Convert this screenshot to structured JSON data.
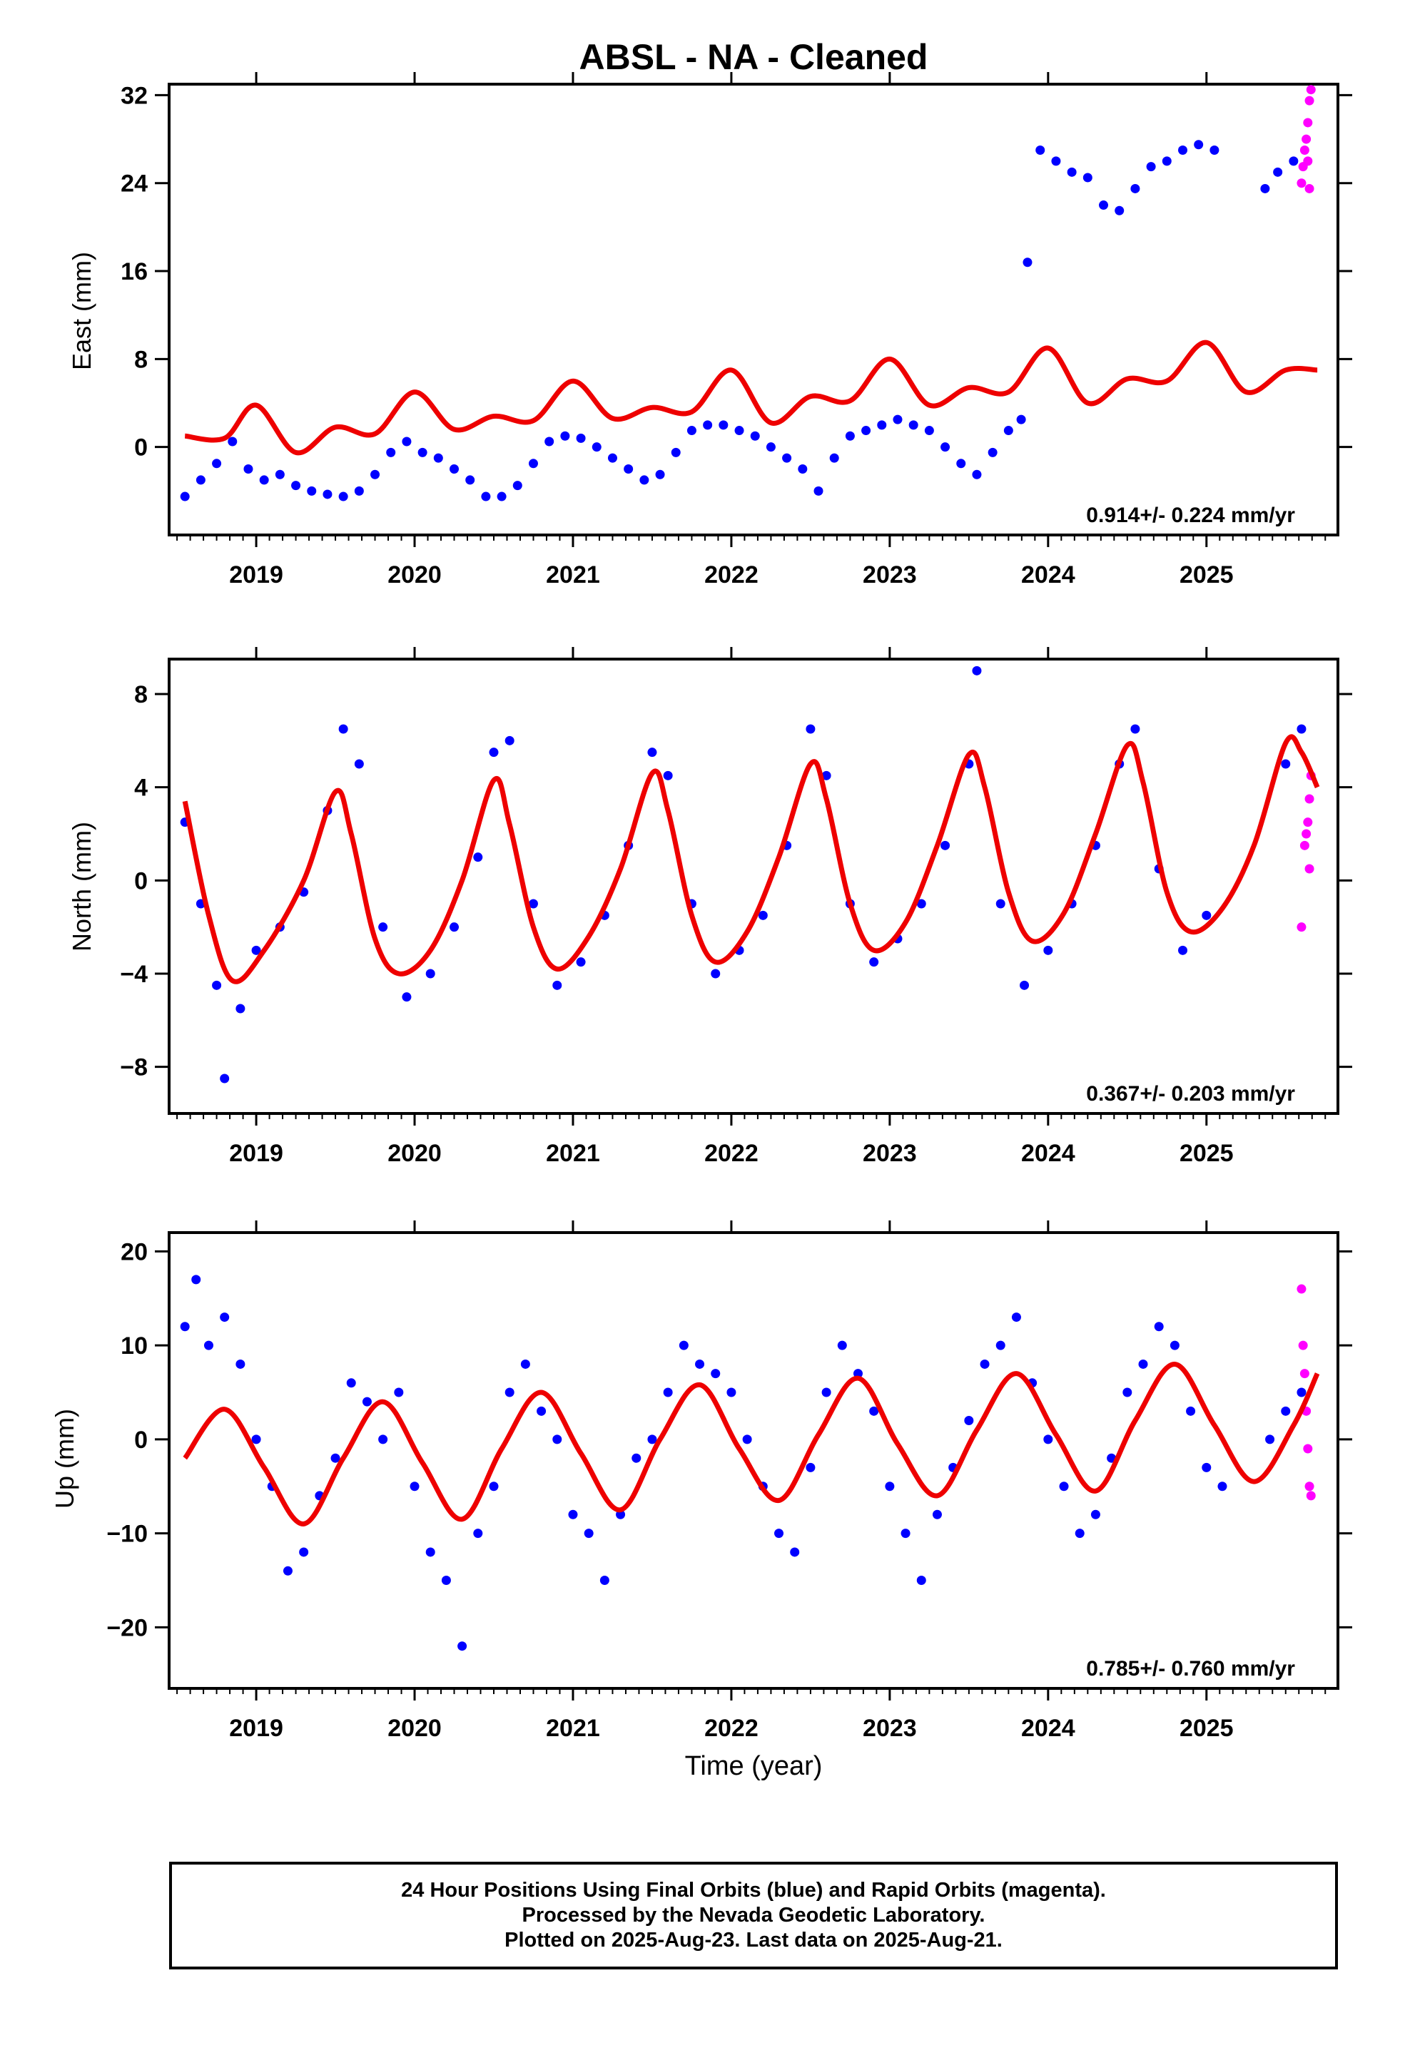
{
  "title": "ABSL  - NA - Cleaned",
  "colors": {
    "final": "#0000ff",
    "rapid": "#ff00ff",
    "model": "#ee0000"
  },
  "footer": {
    "line1": "24 Hour Positions Using Final Orbits (blue) and Rapid Orbits (magenta).",
    "line2": "Processed by the Nevada Geodetic Laboratory.",
    "line3": "Plotted on 2025-Aug-23. Last data on 2025-Aug-21."
  },
  "chart_data": [
    {
      "type": "scatter",
      "ylabel": "East (mm)",
      "xlabel": "",
      "xlim": [
        2018.45,
        2025.83
      ],
      "ylim": [
        -8,
        33
      ],
      "xticks": [
        2019,
        2020,
        2021,
        2022,
        2023,
        2024,
        2025
      ],
      "yticks": [
        0,
        8,
        16,
        24,
        32
      ],
      "rate_text": "0.914+/- 0.224 mm/yr",
      "series": [
        {
          "role": "final",
          "x": [
            2018.55,
            2018.65,
            2018.75,
            2018.85,
            2018.95,
            2019.05,
            2019.15,
            2019.25,
            2019.35,
            2019.45,
            2019.55,
            2019.65,
            2019.75,
            2019.85,
            2019.95,
            2020.05,
            2020.15,
            2020.25,
            2020.35,
            2020.45,
            2020.55,
            2020.65,
            2020.75,
            2020.85,
            2020.95,
            2021.05,
            2021.15,
            2021.25,
            2021.35,
            2021.45,
            2021.55,
            2021.65,
            2021.75,
            2021.85,
            2021.95,
            2022.05,
            2022.15,
            2022.25,
            2022.35,
            2022.45,
            2022.55,
            2022.65,
            2022.75,
            2022.85,
            2022.95,
            2023.05,
            2023.15,
            2023.25,
            2023.35,
            2023.45,
            2023.55,
            2023.65,
            2023.75,
            2023.83,
            2023.87,
            2023.95,
            2024.05,
            2024.15,
            2024.25,
            2024.35,
            2024.45,
            2024.55,
            2024.65,
            2024.75,
            2024.85,
            2024.95,
            2025.05,
            2025.37,
            2025.45,
            2025.55
          ],
          "y": [
            -4.5,
            -3.0,
            -1.5,
            0.5,
            -2.0,
            -3.0,
            -2.5,
            -3.5,
            -4.0,
            -4.3,
            -4.5,
            -4.0,
            -2.5,
            -0.5,
            0.5,
            -0.5,
            -1.0,
            -2.0,
            -3.0,
            -4.5,
            -4.5,
            -3.5,
            -1.5,
            0.5,
            1.0,
            0.8,
            0.0,
            -1.0,
            -2.0,
            -3.0,
            -2.5,
            -0.5,
            1.5,
            2.0,
            2.0,
            1.5,
            1.0,
            0.0,
            -1.0,
            -2.0,
            -4.0,
            -1.0,
            1.0,
            1.5,
            2.0,
            2.5,
            2.0,
            1.5,
            0.0,
            -1.5,
            -2.5,
            -0.5,
            1.5,
            2.5,
            16.8,
            27.0,
            26.0,
            25.0,
            24.5,
            22.0,
            21.5,
            23.5,
            25.5,
            26.0,
            27.0,
            27.5,
            27.0,
            23.5,
            25.0,
            26.0
          ]
        },
        {
          "role": "rapid",
          "x": [
            2025.6,
            2025.61,
            2025.62,
            2025.63,
            2025.64,
            2025.64,
            2025.65,
            2025.65,
            2025.66
          ],
          "y": [
            24.0,
            25.5,
            27.0,
            28.0,
            29.5,
            26.0,
            31.5,
            23.5,
            32.5
          ]
        },
        {
          "role": "model",
          "x": [
            2018.55,
            2018.8,
            2019.0,
            2019.25,
            2019.5,
            2019.75,
            2020.0,
            2020.25,
            2020.5,
            2020.75,
            2021.0,
            2021.25,
            2021.5,
            2021.75,
            2022.0,
            2022.25,
            2022.5,
            2022.75,
            2023.0,
            2023.25,
            2023.5,
            2023.75,
            2024.0,
            2024.25,
            2024.5,
            2024.75,
            2025.0,
            2025.25,
            2025.5,
            2025.7
          ],
          "y": [
            1.0,
            0.8,
            3.8,
            -0.5,
            1.8,
            1.2,
            5.0,
            1.6,
            2.8,
            2.4,
            6.0,
            2.6,
            3.6,
            3.2,
            7.0,
            2.2,
            4.6,
            4.2,
            8.0,
            3.8,
            5.4,
            5.0,
            9.0,
            4.0,
            6.2,
            6.0,
            9.5,
            5.0,
            7.0,
            7.0
          ]
        }
      ]
    },
    {
      "type": "scatter",
      "ylabel": "North (mm)",
      "xlabel": "",
      "xlim": [
        2018.45,
        2025.83
      ],
      "ylim": [
        -10,
        9.5
      ],
      "xticks": [
        2019,
        2020,
        2021,
        2022,
        2023,
        2024,
        2025
      ],
      "yticks": [
        -8,
        -4,
        0,
        4,
        8
      ],
      "rate_text": "0.367+/- 0.203 mm/yr",
      "series": [
        {
          "role": "final",
          "x": [
            2018.55,
            2018.65,
            2018.75,
            2018.8,
            2018.9,
            2019.0,
            2019.15,
            2019.3,
            2019.45,
            2019.55,
            2019.65,
            2019.8,
            2019.95,
            2020.1,
            2020.25,
            2020.4,
            2020.5,
            2020.6,
            2020.75,
            2020.9,
            2021.05,
            2021.2,
            2021.35,
            2021.5,
            2021.6,
            2021.75,
            2021.9,
            2022.05,
            2022.2,
            2022.35,
            2022.5,
            2022.6,
            2022.75,
            2022.9,
            2023.05,
            2023.2,
            2023.35,
            2023.5,
            2023.55,
            2023.7,
            2023.85,
            2024.0,
            2024.15,
            2024.3,
            2024.45,
            2024.55,
            2024.7,
            2024.85,
            2025.0,
            2025.5,
            2025.6
          ],
          "y": [
            2.5,
            -1.0,
            -4.5,
            -8.5,
            -5.5,
            -3.0,
            -2.0,
            -0.5,
            3.0,
            6.5,
            5.0,
            -2.0,
            -5.0,
            -4.0,
            -2.0,
            1.0,
            5.5,
            6.0,
            -1.0,
            -4.5,
            -3.5,
            -1.5,
            1.5,
            5.5,
            4.5,
            -1.0,
            -4.0,
            -3.0,
            -1.5,
            1.5,
            6.5,
            4.5,
            -1.0,
            -3.5,
            -2.5,
            -1.0,
            1.5,
            5.0,
            9.0,
            -1.0,
            -4.5,
            -3.0,
            -1.0,
            1.5,
            5.0,
            6.5,
            0.5,
            -3.0,
            -1.5,
            5.0,
            6.5
          ]
        },
        {
          "role": "rapid",
          "x": [
            2025.62,
            2025.63,
            2025.64,
            2025.65,
            2025.66,
            2025.6,
            2025.65
          ],
          "y": [
            1.5,
            2.0,
            2.5,
            3.5,
            4.5,
            -2.0,
            0.5
          ]
        },
        {
          "role": "model",
          "x": [
            2018.55,
            2018.7,
            2018.85,
            2019.05,
            2019.3,
            2019.5,
            2019.6,
            2019.75,
            2019.9,
            2020.1,
            2020.3,
            2020.5,
            2020.6,
            2020.75,
            2020.9,
            2021.1,
            2021.3,
            2021.5,
            2021.6,
            2021.75,
            2021.9,
            2022.1,
            2022.3,
            2022.5,
            2022.6,
            2022.75,
            2022.9,
            2023.1,
            2023.3,
            2023.5,
            2023.6,
            2023.75,
            2023.9,
            2024.1,
            2024.3,
            2024.5,
            2024.6,
            2024.75,
            2024.9,
            2025.1,
            2025.3,
            2025.5,
            2025.6,
            2025.7
          ],
          "y": [
            3.4,
            -1.5,
            -4.3,
            -3.0,
            0.0,
            3.8,
            2.0,
            -2.5,
            -4.0,
            -3.0,
            0.0,
            4.3,
            2.4,
            -2.0,
            -3.8,
            -2.4,
            0.5,
            4.6,
            3.0,
            -1.5,
            -3.5,
            -2.2,
            1.0,
            5.0,
            3.5,
            -1.0,
            -3.0,
            -1.8,
            1.5,
            5.4,
            4.0,
            -0.5,
            -2.6,
            -1.4,
            2.0,
            5.8,
            4.2,
            -0.5,
            -2.2,
            -1.2,
            1.5,
            5.9,
            5.5,
            4.0
          ]
        }
      ]
    },
    {
      "type": "scatter",
      "ylabel": "Up (mm)",
      "xlabel": "Time (year)",
      "xlim": [
        2018.45,
        2025.83
      ],
      "ylim": [
        -26.5,
        22
      ],
      "xticks": [
        2019,
        2020,
        2021,
        2022,
        2023,
        2024,
        2025
      ],
      "yticks": [
        -20,
        -10,
        0,
        10,
        20
      ],
      "rate_text": "0.785+/- 0.760 mm/yr",
      "series": [
        {
          "role": "final",
          "x": [
            2018.55,
            2018.62,
            2018.7,
            2018.8,
            2018.9,
            2019.0,
            2019.1,
            2019.2,
            2019.3,
            2019.4,
            2019.5,
            2019.6,
            2019.7,
            2019.8,
            2019.9,
            2020.0,
            2020.1,
            2020.2,
            2020.3,
            2020.4,
            2020.5,
            2020.6,
            2020.7,
            2020.8,
            2020.9,
            2021.0,
            2021.1,
            2021.2,
            2021.3,
            2021.4,
            2021.5,
            2021.6,
            2021.7,
            2021.8,
            2021.9,
            2022.0,
            2022.1,
            2022.2,
            2022.3,
            2022.4,
            2022.5,
            2022.6,
            2022.7,
            2022.8,
            2022.9,
            2023.0,
            2023.1,
            2023.2,
            2023.3,
            2023.4,
            2023.5,
            2023.6,
            2023.7,
            2023.8,
            2023.9,
            2024.0,
            2024.1,
            2024.2,
            2024.3,
            2024.4,
            2024.5,
            2024.6,
            2024.7,
            2024.8,
            2024.9,
            2025.0,
            2025.1,
            2025.4,
            2025.5,
            2025.6
          ],
          "y": [
            12.0,
            17.0,
            10.0,
            13.0,
            8.0,
            0.0,
            -5.0,
            -14.0,
            -12.0,
            -6.0,
            -2.0,
            6.0,
            4.0,
            0.0,
            5.0,
            -5.0,
            -12.0,
            -15.0,
            -22.0,
            -10.0,
            -5.0,
            5.0,
            8.0,
            3.0,
            0.0,
            -8.0,
            -10.0,
            -15.0,
            -8.0,
            -2.0,
            0.0,
            5.0,
            10.0,
            8.0,
            7.0,
            5.0,
            0.0,
            -5.0,
            -10.0,
            -12.0,
            -3.0,
            5.0,
            10.0,
            7.0,
            3.0,
            -5.0,
            -10.0,
            -15.0,
            -8.0,
            -3.0,
            2.0,
            8.0,
            10.0,
            13.0,
            6.0,
            0.0,
            -5.0,
            -10.0,
            -8.0,
            -2.0,
            5.0,
            8.0,
            12.0,
            10.0,
            3.0,
            -3.0,
            -5.0,
            0.0,
            3.0,
            5.0
          ]
        },
        {
          "role": "rapid",
          "x": [
            2025.6,
            2025.61,
            2025.62,
            2025.63,
            2025.64,
            2025.65,
            2025.66
          ],
          "y": [
            16.0,
            10.0,
            7.0,
            3.0,
            -1.0,
            -5.0,
            -6.0
          ]
        },
        {
          "role": "model",
          "x": [
            2018.55,
            2018.8,
            2019.05,
            2019.3,
            2019.55,
            2019.8,
            2020.05,
            2020.3,
            2020.55,
            2020.8,
            2021.05,
            2021.3,
            2021.55,
            2021.8,
            2022.05,
            2022.3,
            2022.55,
            2022.8,
            2023.05,
            2023.3,
            2023.55,
            2023.8,
            2024.05,
            2024.3,
            2024.55,
            2024.8,
            2025.05,
            2025.3,
            2025.55,
            2025.7
          ],
          "y": [
            -2.0,
            3.2,
            -3.0,
            -9.0,
            -2.0,
            4.0,
            -2.5,
            -8.5,
            -1.0,
            5.0,
            -1.5,
            -7.5,
            0.0,
            5.8,
            -1.0,
            -6.5,
            0.5,
            6.5,
            -0.5,
            -6.0,
            1.0,
            7.0,
            0.5,
            -5.5,
            2.0,
            8.0,
            1.5,
            -4.5,
            1.5,
            7.0
          ]
        }
      ]
    }
  ]
}
